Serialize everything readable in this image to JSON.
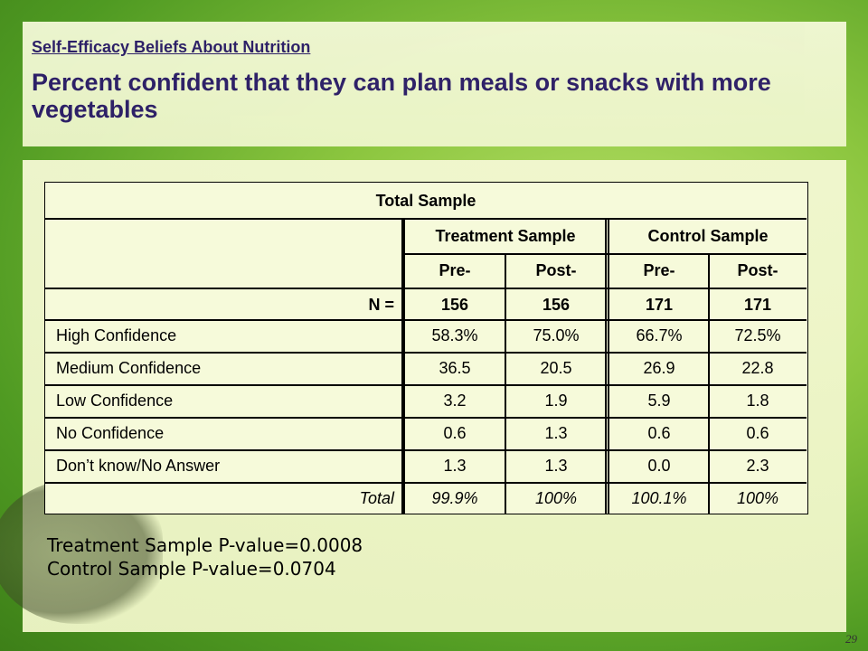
{
  "slide": {
    "kicker": "Self-Efficacy Beliefs About Nutrition",
    "headline": "Percent confident that they can plan meals or snacks with more vegetables",
    "page_number": "29"
  },
  "table": {
    "title": "Total Sample",
    "group_headers": [
      "Treatment Sample",
      "Control Sample"
    ],
    "sub_headers": [
      "Pre-",
      "Post-",
      "Pre-",
      "Post-"
    ],
    "n_row": {
      "label": "N  =",
      "values": [
        "156",
        "156",
        "171",
        "171"
      ]
    },
    "rows": [
      {
        "label": "High Confidence",
        "values": [
          "58.3%",
          "75.0%",
          "66.7%",
          "72.5%"
        ]
      },
      {
        "label": "Medium Confidence",
        "values": [
          "36.5",
          "20.5",
          "26.9",
          "22.8"
        ]
      },
      {
        "label": "Low Confidence",
        "values": [
          "3.2",
          "1.9",
          "5.9",
          "1.8"
        ]
      },
      {
        "label": "No Confidence",
        "values": [
          "0.6",
          "1.3",
          "0.6",
          "0.6"
        ]
      },
      {
        "label": "Don’t know/No Answer",
        "values": [
          "1.3",
          "1.3",
          "0.0",
          "2.3"
        ]
      }
    ],
    "total_row": {
      "label": "Total",
      "values": [
        "99.9%",
        "100%",
        "100.1%",
        "100%"
      ]
    }
  },
  "pvalues": [
    "Treatment Sample P-value=0.0008",
    "Control Sample P-value=0.0704"
  ]
}
